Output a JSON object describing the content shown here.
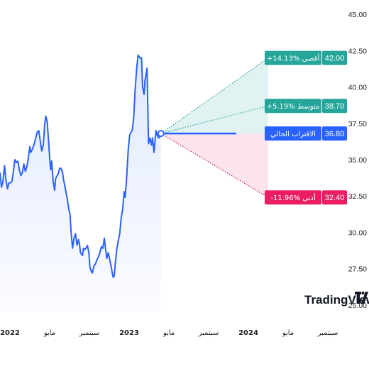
{
  "chart_data": {
    "type": "line",
    "watermark": "TradingView",
    "x_labels": [
      {
        "text": "2022",
        "x": 0,
        "year": true
      },
      {
        "text": "مايو",
        "x": 4,
        "year": false
      },
      {
        "text": "سبتمبر",
        "x": 8,
        "year": false
      },
      {
        "text": "2023",
        "x": 12,
        "year": true
      },
      {
        "text": "مايو",
        "x": 16,
        "year": false
      },
      {
        "text": "سبتمبر",
        "x": 20,
        "year": false
      },
      {
        "text": "2024",
        "x": 24,
        "year": true
      },
      {
        "text": "مايو",
        "x": 28,
        "year": false
      },
      {
        "text": "سبتمبر",
        "x": 32,
        "year": false
      }
    ],
    "xlim": [
      -1,
      34
    ],
    "ylim": [
      24.5,
      45.5
    ],
    "y_ticks": [
      {
        "value": 45.0,
        "label": "45.00"
      },
      {
        "value": 42.5,
        "label": "42.50"
      },
      {
        "value": 40.0,
        "label": "40.00"
      },
      {
        "value": 37.5,
        "label": "37.50"
      },
      {
        "value": 35.0,
        "label": "35.00"
      },
      {
        "value": 32.5,
        "label": "32.50"
      },
      {
        "value": 30.0,
        "label": "30.00"
      },
      {
        "value": 27.5,
        "label": "27.50"
      },
      {
        "value": 25.0,
        "label": "25.00"
      }
    ],
    "series": [
      {
        "color": "#2962ff",
        "points": [
          [
            -1.0,
            34.1
          ],
          [
            -0.85,
            33.1
          ],
          [
            -0.7,
            33.5
          ],
          [
            -0.55,
            34.6
          ],
          [
            -0.4,
            33.6
          ],
          [
            -0.25,
            33.0
          ],
          [
            -0.1,
            33.4
          ],
          [
            0.05,
            33.4
          ],
          [
            0.2,
            33.5
          ],
          [
            0.35,
            34.2
          ],
          [
            0.5,
            35.0
          ],
          [
            0.65,
            34.8
          ],
          [
            0.8,
            34.9
          ],
          [
            0.95,
            34.3
          ],
          [
            1.1,
            33.9
          ],
          [
            1.25,
            34.1
          ],
          [
            1.4,
            34.7
          ],
          [
            1.55,
            34.2
          ],
          [
            1.7,
            34.5
          ],
          [
            1.85,
            35.1
          ],
          [
            2.0,
            35.9
          ],
          [
            2.1,
            35.5
          ],
          [
            2.25,
            35.7
          ],
          [
            2.45,
            36.1
          ],
          [
            2.6,
            36.5
          ],
          [
            2.75,
            36.9
          ],
          [
            2.9,
            37.0
          ],
          [
            3.05,
            36.3
          ],
          [
            3.2,
            35.6
          ],
          [
            3.35,
            36.0
          ],
          [
            3.5,
            37.4
          ],
          [
            3.6,
            38.0
          ],
          [
            3.75,
            37.6
          ],
          [
            3.9,
            36.2
          ],
          [
            4.0,
            35.1
          ],
          [
            4.1,
            34.3
          ],
          [
            4.2,
            34.9
          ],
          [
            4.35,
            33.5
          ],
          [
            4.5,
            32.9
          ],
          [
            4.6,
            33.7
          ],
          [
            4.75,
            33.9
          ],
          [
            4.85,
            34.0
          ],
          [
            5.0,
            34.4
          ],
          [
            5.15,
            34.4
          ],
          [
            5.3,
            34.1
          ],
          [
            5.4,
            33.6
          ],
          [
            5.5,
            33.3
          ],
          [
            5.6,
            32.9
          ],
          [
            5.75,
            32.4
          ],
          [
            5.9,
            31.7
          ],
          [
            6.05,
            31.2
          ],
          [
            6.15,
            30.1
          ],
          [
            6.3,
            28.9
          ],
          [
            6.45,
            29.6
          ],
          [
            6.6,
            29.9
          ],
          [
            6.75,
            29.1
          ],
          [
            6.9,
            29.5
          ],
          [
            7.0,
            29.2
          ],
          [
            7.1,
            28.6
          ],
          [
            7.2,
            28.5
          ],
          [
            7.3,
            28.4
          ],
          [
            7.4,
            28.9
          ],
          [
            7.5,
            28.8
          ],
          [
            7.65,
            28.9
          ],
          [
            7.8,
            29.1
          ],
          [
            7.95,
            28.6
          ],
          [
            8.05,
            27.6
          ],
          [
            8.2,
            27.3
          ],
          [
            8.3,
            27.2
          ],
          [
            8.45,
            27.7
          ],
          [
            8.6,
            27.8
          ],
          [
            8.75,
            28.1
          ],
          [
            8.9,
            28.3
          ],
          [
            9.05,
            28.6
          ],
          [
            9.2,
            29.0
          ],
          [
            9.35,
            28.9
          ],
          [
            9.5,
            29.6
          ],
          [
            9.6,
            29.0
          ],
          [
            9.75,
            28.2
          ],
          [
            9.9,
            28.6
          ],
          [
            10.05,
            28.1
          ],
          [
            10.2,
            27.6
          ],
          [
            10.3,
            27.2
          ],
          [
            10.4,
            26.9
          ],
          [
            10.5,
            27.0
          ],
          [
            10.6,
            27.8
          ],
          [
            10.75,
            28.8
          ],
          [
            10.9,
            29.4
          ],
          [
            11.05,
            29.9
          ],
          [
            11.2,
            31.0
          ],
          [
            11.35,
            31.6
          ],
          [
            11.5,
            32.8
          ],
          [
            11.6,
            32.4
          ],
          [
            11.75,
            33.8
          ],
          [
            11.9,
            35.6
          ],
          [
            12.05,
            36.7
          ],
          [
            12.2,
            36.9
          ],
          [
            12.3,
            37.0
          ],
          [
            12.45,
            37.8
          ],
          [
            12.6,
            39.8
          ],
          [
            12.75,
            41.2
          ],
          [
            12.9,
            42.2
          ],
          [
            13.0,
            42.1
          ],
          [
            13.1,
            42.0
          ],
          [
            13.25,
            42.0
          ],
          [
            13.35,
            40.0
          ],
          [
            13.5,
            39.5
          ],
          [
            13.6,
            40.5
          ],
          [
            13.8,
            41.3
          ],
          [
            13.95,
            36.1
          ],
          [
            14.1,
            36.5
          ],
          [
            14.25,
            36.0
          ],
          [
            14.35,
            36.5
          ],
          [
            14.5,
            35.5
          ],
          [
            14.7,
            37.0
          ],
          [
            14.85,
            36.6
          ],
          [
            15.0,
            36.5
          ],
          [
            15.2,
            36.8
          ]
        ]
      }
    ],
    "current_point": [
      15.2,
      36.8
    ],
    "forecast": {
      "start_x": 15.2,
      "end_x": 26.0,
      "high": 42.0,
      "avg": 38.7,
      "low": 32.4,
      "current": 36.8
    },
    "labels": {
      "high": {
        "text": "+14.13% أقصى",
        "value": "42.00",
        "color": "#26a69a"
      },
      "avg": {
        "text": "+5.19% متوسط",
        "value": "38.70",
        "color": "#26a69a"
      },
      "current": {
        "text": "الاقتراب الحالي",
        "value": "36.80",
        "color": "#2962ff"
      },
      "low": {
        "text": "-11.96% أدنى",
        "value": "32.40",
        "color": "#e91e63"
      }
    }
  }
}
